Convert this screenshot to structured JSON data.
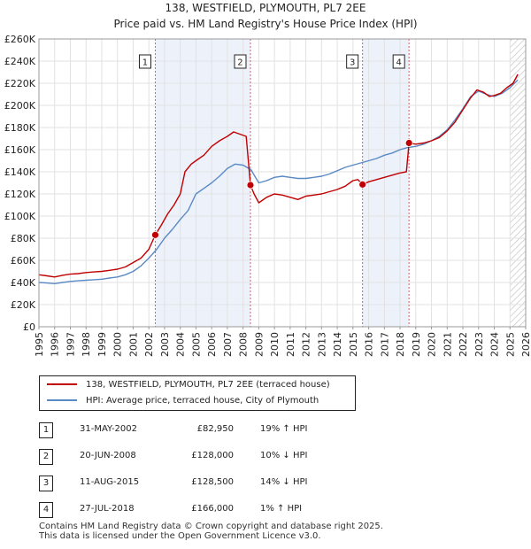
{
  "title": "138, WESTFIELD, PLYMOUTH, PL7 2EE",
  "subtitle": "Price paid vs. HM Land Registry's House Price Index (HPI)",
  "colors": {
    "property": "#c00000",
    "hpi": "#5a8ac6",
    "sale_band": "#dde6f5",
    "marker_line": "#d06070",
    "hatch": "#c8c8c8"
  },
  "chart_data": {
    "type": "line",
    "title": "138, WESTFIELD, PLYMOUTH, PL7 2EE",
    "subtitle": "Price paid vs. HM Land Registry's House Price Index (HPI)",
    "xlim": [
      1995,
      2026
    ],
    "ylim": [
      0,
      260000
    ],
    "x_ticks": [
      1995,
      1996,
      1997,
      1998,
      1999,
      2000,
      2001,
      2002,
      2003,
      2004,
      2005,
      2006,
      2007,
      2008,
      2009,
      2010,
      2011,
      2012,
      2013,
      2014,
      2015,
      2016,
      2017,
      2018,
      2019,
      2020,
      2021,
      2022,
      2023,
      2024,
      2025,
      2026
    ],
    "y_ticks": [
      {
        "value": 0,
        "label": "£0"
      },
      {
        "value": 20000,
        "label": "£20K"
      },
      {
        "value": 40000,
        "label": "£40K"
      },
      {
        "value": 60000,
        "label": "£60K"
      },
      {
        "value": 80000,
        "label": "£80K"
      },
      {
        "value": 100000,
        "label": "£100K"
      },
      {
        "value": 120000,
        "label": "£120K"
      },
      {
        "value": 140000,
        "label": "£140K"
      },
      {
        "value": 160000,
        "label": "£160K"
      },
      {
        "value": 180000,
        "label": "£180K"
      },
      {
        "value": 200000,
        "label": "£200K"
      },
      {
        "value": 220000,
        "label": "£220K"
      },
      {
        "value": 240000,
        "label": "£240K"
      },
      {
        "value": 260000,
        "label": "£260K"
      }
    ],
    "series": [
      {
        "name": "138, WESTFIELD, PLYMOUTH, PL7 2EE (terraced house)",
        "color": "#c00000",
        "x": [
          1995.0,
          1995.5,
          1996.0,
          1996.5,
          1997.0,
          1997.5,
          1998.0,
          1998.5,
          1999.0,
          1999.5,
          2000.0,
          2000.5,
          2001.0,
          2001.5,
          2002.0,
          2002.41,
          2002.8,
          2003.2,
          2003.6,
          2004.0,
          2004.3,
          2004.7,
          2005.0,
          2005.5,
          2006.0,
          2006.5,
          2007.0,
          2007.4,
          2007.8,
          2008.2,
          2008.47,
          2008.7,
          2009.0,
          2009.5,
          2010.0,
          2010.5,
          2011.0,
          2011.5,
          2012.0,
          2012.5,
          2013.0,
          2013.5,
          2014.0,
          2014.5,
          2015.0,
          2015.3,
          2015.61,
          2016.0,
          2016.5,
          2017.0,
          2017.5,
          2018.0,
          2018.4,
          2018.57,
          2019.0,
          2019.5,
          2020.0,
          2020.5,
          2021.0,
          2021.5,
          2022.0,
          2022.5,
          2022.9,
          2023.3,
          2023.7,
          2024.0,
          2024.4,
          2024.8,
          2025.2,
          2025.5
        ],
        "values": [
          47000,
          46000,
          45000,
          46500,
          47500,
          48000,
          49000,
          49500,
          50000,
          51000,
          52000,
          54000,
          58000,
          62000,
          70000,
          82950,
          92000,
          102000,
          110000,
          120000,
          140000,
          147000,
          150000,
          155000,
          163000,
          168000,
          172000,
          176000,
          174000,
          172000,
          128000,
          120000,
          112000,
          117000,
          120000,
          119000,
          117000,
          115000,
          118000,
          119000,
          120000,
          122000,
          124000,
          127000,
          132000,
          133000,
          128500,
          131000,
          133000,
          135000,
          137000,
          139000,
          140000,
          166000,
          165000,
          166000,
          168000,
          171000,
          177000,
          185000,
          196000,
          207000,
          214000,
          212000,
          208000,
          209000,
          211000,
          216000,
          220000,
          228000
        ]
      },
      {
        "name": "HPI: Average price, terraced house, City of Plymouth",
        "color": "#5a8ac6",
        "x": [
          1995.0,
          1995.5,
          1996.0,
          1996.5,
          1997.0,
          1997.5,
          1998.0,
          1998.5,
          1999.0,
          1999.5,
          2000.0,
          2000.5,
          2001.0,
          2001.5,
          2002.0,
          2002.5,
          2003.0,
          2003.5,
          2004.0,
          2004.5,
          2005.0,
          2005.5,
          2006.0,
          2006.5,
          2007.0,
          2007.5,
          2008.0,
          2008.5,
          2009.0,
          2009.5,
          2010.0,
          2010.5,
          2011.0,
          2011.5,
          2012.0,
          2012.5,
          2013.0,
          2013.5,
          2014.0,
          2014.5,
          2015.0,
          2015.5,
          2016.0,
          2016.5,
          2017.0,
          2017.5,
          2018.0,
          2018.5,
          2019.0,
          2019.5,
          2020.0,
          2020.5,
          2021.0,
          2021.5,
          2022.0,
          2022.5,
          2023.0,
          2023.5,
          2024.0,
          2024.5,
          2025.0,
          2025.5
        ],
        "values": [
          40000,
          39500,
          39000,
          40000,
          41000,
          41500,
          42000,
          42500,
          43000,
          44000,
          45000,
          47000,
          50000,
          55000,
          62000,
          70000,
          80000,
          88000,
          97000,
          105000,
          120000,
          125000,
          130000,
          136000,
          143000,
          147000,
          146000,
          142000,
          130000,
          132000,
          135000,
          136000,
          135000,
          134000,
          134000,
          135000,
          136000,
          138000,
          141000,
          144000,
          146000,
          148000,
          150000,
          152000,
          155000,
          157000,
          160000,
          162000,
          163000,
          165000,
          168000,
          172000,
          178000,
          187000,
          197000,
          208000,
          213000,
          210000,
          208000,
          211000,
          216000,
          223000
        ]
      }
    ],
    "annotations": [
      {
        "label": "1",
        "x": 2002.41,
        "price": 82950
      },
      {
        "label": "2",
        "x": 2008.47,
        "price": 128000
      },
      {
        "label": "3",
        "x": 2015.61,
        "price": 128500
      },
      {
        "label": "4",
        "x": 2018.57,
        "price": 166000
      }
    ],
    "hatched_from": 2025.0
  },
  "legend": {
    "property": "138, WESTFIELD, PLYMOUTH, PL7 2EE (terraced house)",
    "hpi": "HPI: Average price, terraced house, City of Plymouth"
  },
  "sales": [
    {
      "num": "1",
      "date": "31-MAY-2002",
      "price": "£82,950",
      "hpi": "19% ↑ HPI"
    },
    {
      "num": "2",
      "date": "20-JUN-2008",
      "price": "£128,000",
      "hpi": "10% ↓ HPI"
    },
    {
      "num": "3",
      "date": "11-AUG-2015",
      "price": "£128,500",
      "hpi": "14% ↓ HPI"
    },
    {
      "num": "4",
      "date": "27-JUL-2018",
      "price": "£166,000",
      "hpi": "1% ↑ HPI"
    }
  ],
  "footer": {
    "line1": "Contains HM Land Registry data © Crown copyright and database right 2025.",
    "line2": "This data is licensed under the Open Government Licence v3.0."
  }
}
